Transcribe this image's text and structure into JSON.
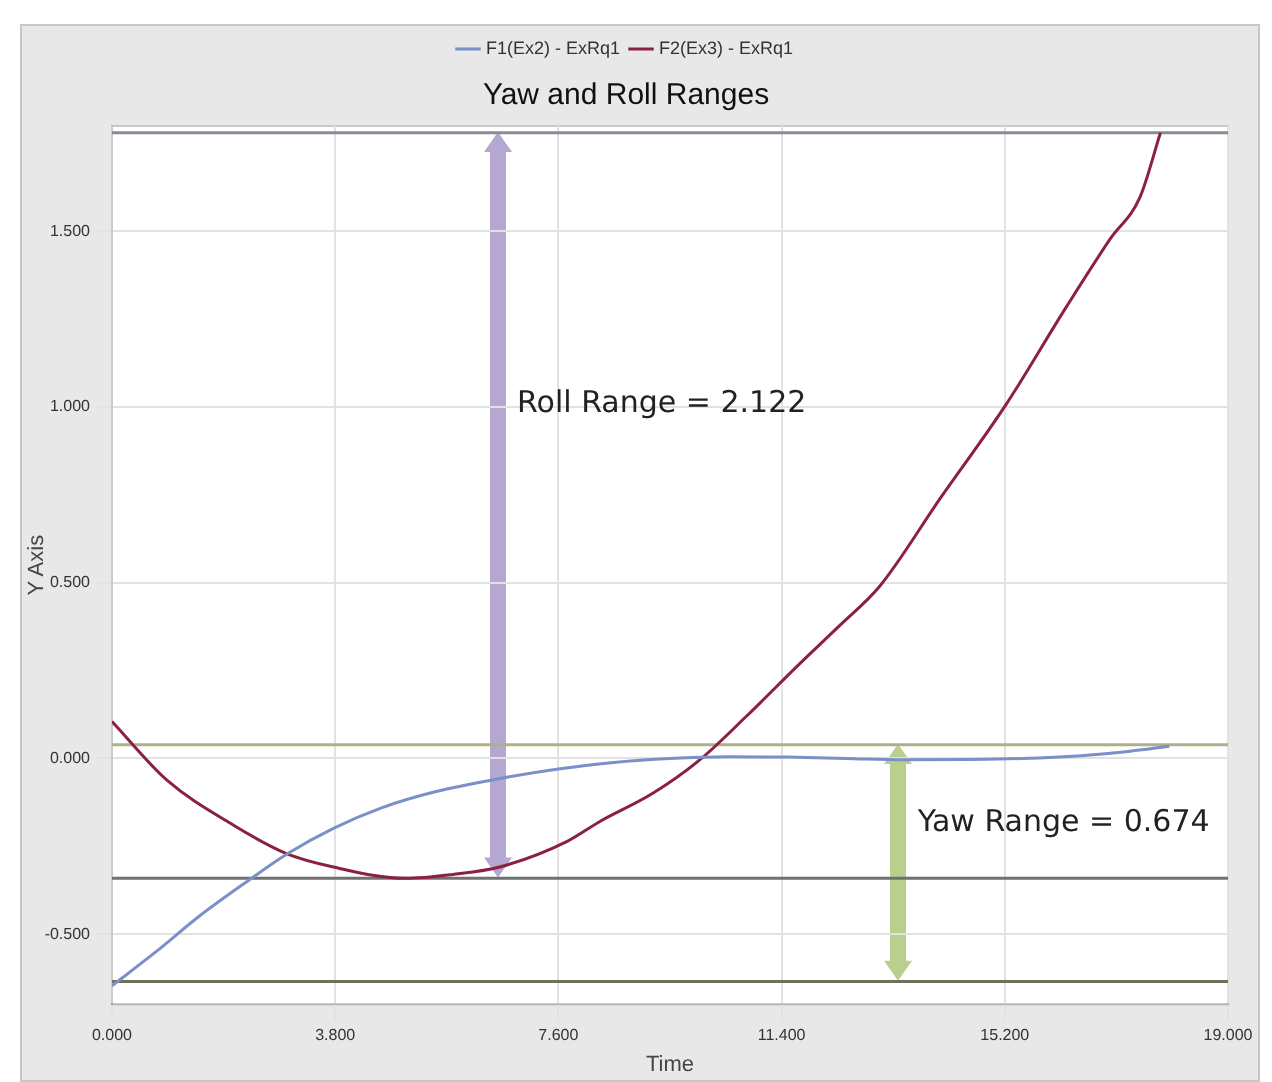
{
  "chart_data": {
    "type": "line",
    "title": "Yaw and Roll Ranges",
    "xlabel": "Time",
    "ylabel": "Y Axis",
    "series": [
      {
        "name": "F1(Ex2) - ExRq1",
        "color": "#7b8fc8",
        "x": [
          0,
          0.75,
          1.5,
          2.3,
          3.0,
          3.77,
          4.6,
          5.5,
          6.6,
          7.6,
          8.5,
          9.5,
          10.5,
          11.5,
          12.5,
          13.5,
          14.5,
          15.5,
          16.5,
          17.3,
          18.0
        ],
        "values": [
          -0.647,
          -0.55,
          -0.447,
          -0.35,
          -0.27,
          -0.199,
          -0.14,
          -0.095,
          -0.057,
          -0.03,
          -0.012,
          0.0,
          0.005,
          0.004,
          0.0,
          -0.004,
          -0.003,
          0.0,
          0.008,
          0.02,
          0.035
        ]
      },
      {
        "name": "F2(Ex3) - ExRq1",
        "color": "#8b2040",
        "x": [
          0,
          0.93,
          2.07,
          2.96,
          3.77,
          5.0,
          5.8,
          6.6,
          7.75,
          8.3,
          9.2,
          10.0,
          10.8,
          11.71,
          12.4,
          13.07,
          14.1,
          15.22,
          16.24,
          17.0,
          17.5,
          17.85
        ],
        "values": [
          0.105,
          -0.061,
          -0.19,
          -0.27,
          -0.309,
          -0.341,
          -0.33,
          -0.309,
          -0.236,
          -0.18,
          -0.1,
          -0.005,
          0.12,
          0.27,
          0.38,
          0.49,
          0.74,
          1.007,
          1.283,
          1.48,
          1.597,
          1.781
        ]
      }
    ],
    "xlim": [
      0,
      19
    ],
    "xticks": [
      {
        "value": 0,
        "label": "0.000"
      },
      {
        "value": 3.8,
        "label": "3.800"
      },
      {
        "value": 7.6,
        "label": "7.600"
      },
      {
        "value": 11.4,
        "label": "11.400"
      },
      {
        "value": 15.2,
        "label": "15.200"
      },
      {
        "value": 19,
        "label": "19.000"
      }
    ],
    "ylim": [
      -0.7,
      1.8
    ],
    "yticks": [
      {
        "value": -0.5,
        "label": "-0.500"
      },
      {
        "value": 0,
        "label": "0.000"
      },
      {
        "value": 0.5,
        "label": "0.500"
      },
      {
        "value": 1,
        "label": "1.000"
      },
      {
        "value": 1.5,
        "label": "1.500"
      }
    ],
    "ref_lines": [
      {
        "axis": "y",
        "value": -0.341,
        "color": "#707070"
      },
      {
        "axis": "y",
        "value": 1.781,
        "color": "#8a8a9a"
      },
      {
        "axis": "y",
        "value": 0.039,
        "color": "#b0b088"
      },
      {
        "axis": "y",
        "value": -0.635,
        "color": "#6f6f5a"
      }
    ],
    "annotations": [
      "Roll Range = 2.122",
      "Yaw Range = 0.674"
    ],
    "grid": true,
    "legend": "top",
    "marker": "none",
    "line_style": "solid"
  }
}
